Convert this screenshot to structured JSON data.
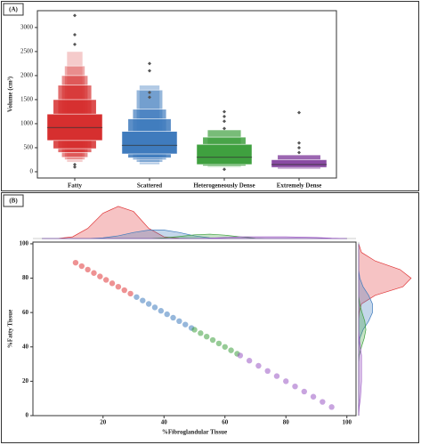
{
  "chart_data": [
    {
      "type": "boxen",
      "label": "(A)",
      "y_label": "Volume (cm³)",
      "categories": [
        "Fatty",
        "Scattered",
        "Heterogeneously Dense",
        "Extremely Dense"
      ],
      "ylim": [
        -130,
        3350
      ],
      "yticks": [
        0,
        500,
        1000,
        1500,
        2000,
        2500,
        3000
      ],
      "boxes": [
        {
          "color": "#d62f2f",
          "median": 920,
          "levels": [
            [
              650,
              1200
            ],
            [
              480,
              1500
            ],
            [
              400,
              1800
            ],
            [
              300,
              2000
            ],
            [
              250,
              2200
            ],
            [
              200,
              2500
            ]
          ],
          "outliers": [
            3250,
            2850,
            2650,
            150,
            100
          ]
        },
        {
          "color": "#3f7bbd",
          "median": 550,
          "levels": [
            [
              370,
              840
            ],
            [
              290,
              1100
            ],
            [
              250,
              1300
            ],
            [
              200,
              1700
            ],
            [
              150,
              1800
            ]
          ],
          "outliers": [
            2250,
            2100,
            1650,
            1550
          ]
        },
        {
          "color": "#3fa03f",
          "median": 300,
          "levels": [
            [
              150,
              570
            ],
            [
              120,
              720
            ],
            [
              100,
              870
            ]
          ],
          "outliers": [
            1250,
            1150,
            1050,
            900,
            50
          ]
        },
        {
          "color": "#8a4ba3",
          "median": 150,
          "levels": [
            [
              90,
              250
            ],
            [
              60,
              350
            ]
          ],
          "outliers": [
            1230,
            600,
            500,
            400
          ]
        }
      ]
    },
    {
      "type": "scatter",
      "label": "(B)",
      "x_label": "%Fibroglandular Tissue",
      "y_label": "%Fatty Tissue",
      "xlim": [
        -3,
        103
      ],
      "ylim": [
        0,
        101
      ],
      "xticks": [
        20,
        40,
        60,
        80,
        100
      ],
      "yticks": [
        0,
        20,
        40,
        60,
        80,
        100
      ],
      "density_grid": [
        0,
        5,
        10,
        15,
        20,
        25,
        30,
        35,
        40,
        45,
        50,
        55,
        60,
        65,
        70,
        75,
        80,
        85,
        90,
        95,
        100
      ],
      "series": [
        {
          "color": "#e0383a",
          "x": [
            11,
            13,
            15,
            17,
            19,
            21,
            23,
            25,
            27,
            29
          ],
          "y": [
            89,
            87,
            85,
            83,
            81,
            79,
            77,
            75,
            73,
            71
          ],
          "density_x": [
            0,
            0,
            0.05,
            0.3,
            0.75,
            0.95,
            0.8,
            0.3,
            0.05,
            0.01,
            0,
            0,
            0,
            0,
            0,
            0,
            0,
            0,
            0,
            0,
            0
          ],
          "density_y": [
            0,
            0,
            0,
            0,
            0,
            0,
            0,
            0,
            0,
            0,
            0,
            0,
            0.01,
            0.05,
            0.3,
            0.8,
            0.95,
            0.75,
            0.3,
            0.05,
            0
          ]
        },
        {
          "color": "#3f7bbd",
          "x": [
            31,
            33,
            35,
            37,
            39,
            41,
            43,
            45,
            47,
            49
          ],
          "y": [
            69,
            67,
            65,
            63,
            61,
            59,
            57,
            55,
            53,
            51
          ],
          "density_x": [
            0,
            0,
            0,
            0,
            0.02,
            0.08,
            0.18,
            0.25,
            0.25,
            0.18,
            0.08,
            0.02,
            0,
            0,
            0,
            0,
            0,
            0,
            0,
            0,
            0
          ],
          "density_y": [
            0,
            0,
            0,
            0,
            0,
            0,
            0,
            0,
            0,
            0.02,
            0.08,
            0.18,
            0.25,
            0.25,
            0.18,
            0.08,
            0.02,
            0,
            0,
            0,
            0
          ]
        },
        {
          "color": "#3fa03f",
          "x": [
            50,
            52,
            54,
            56,
            58,
            60,
            62,
            64
          ],
          "y": [
            50,
            48,
            46,
            44,
            42,
            40,
            38,
            36
          ],
          "density_x": [
            0,
            0,
            0,
            0,
            0,
            0,
            0,
            0,
            0.02,
            0.06,
            0.11,
            0.13,
            0.1,
            0.05,
            0.01,
            0,
            0,
            0,
            0,
            0,
            0
          ],
          "density_y": [
            0,
            0,
            0,
            0,
            0,
            0,
            0,
            0.01,
            0.05,
            0.1,
            0.13,
            0.11,
            0.06,
            0.02,
            0,
            0,
            0,
            0,
            0,
            0,
            0
          ]
        },
        {
          "color": "#9b59c4",
          "x": [
            65,
            68,
            71,
            74,
            77,
            80,
            83,
            86,
            89,
            92,
            95
          ],
          "y": [
            35,
            32,
            29,
            26,
            23,
            20,
            17,
            14,
            11,
            8,
            5
          ],
          "density_x": [
            0,
            0,
            0,
            0,
            0,
            0,
            0,
            0,
            0,
            0,
            0,
            0.01,
            0.03,
            0.05,
            0.05,
            0.05,
            0.05,
            0.04,
            0.03,
            0.01,
            0
          ],
          "density_y": [
            0,
            0.01,
            0.03,
            0.04,
            0.05,
            0.05,
            0.05,
            0.05,
            0.03,
            0.01,
            0,
            0,
            0,
            0,
            0,
            0,
            0,
            0,
            0,
            0,
            0
          ]
        }
      ]
    }
  ]
}
